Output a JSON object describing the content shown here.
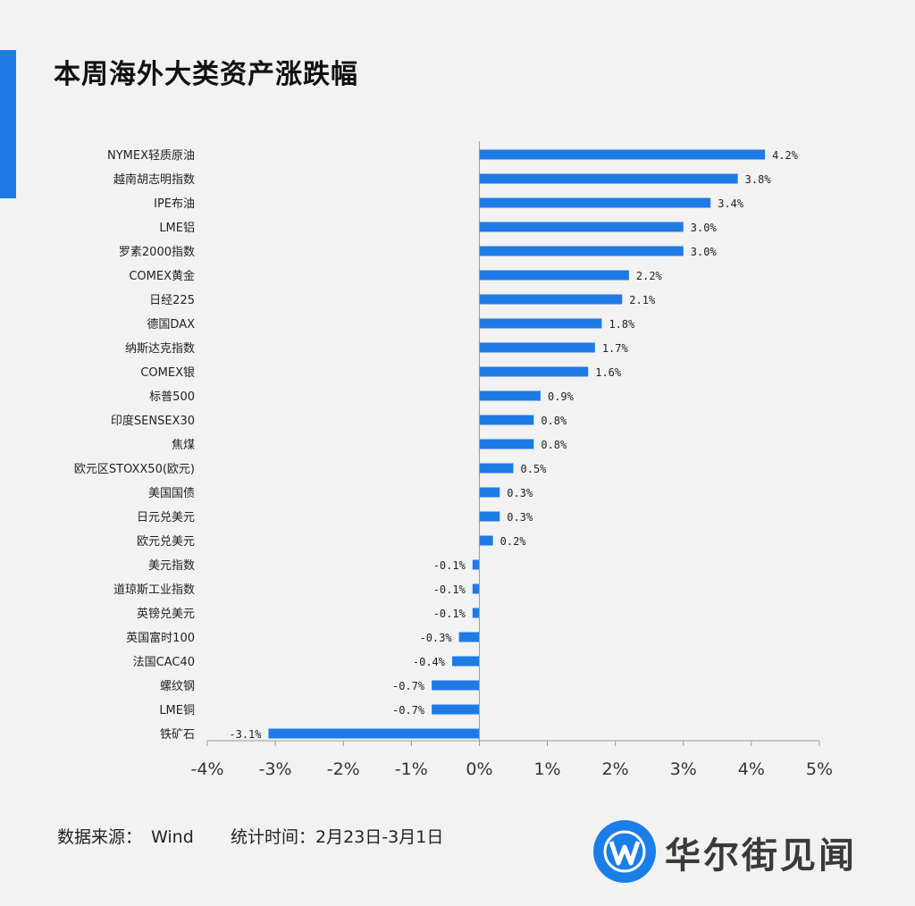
{
  "title": "本周海外大类资产涨跌幅",
  "footer": {
    "source_label": "数据来源：",
    "source_value": "Wind",
    "period_label": "统计时间：",
    "period_value": "2月23日-3月1日"
  },
  "brand": {
    "name": "华尔街见闻"
  },
  "colors": {
    "bar": "#1e7be6",
    "accent": "#1e7be6",
    "background": "#f2f2f2"
  },
  "chart_data": {
    "type": "bar",
    "orientation": "horizontal",
    "title": "",
    "xlabel": "",
    "ylabel": "",
    "xlim": [
      -4,
      5
    ],
    "ticks": [
      "-4%",
      "-3%",
      "-2%",
      "-1%",
      "0%",
      "1%",
      "2%",
      "3%",
      "4%",
      "5%"
    ],
    "grid": false,
    "categories": [
      "NYMEX轻质原油",
      "越南胡志明指数",
      "IPE布油",
      "LME铝",
      "罗素2000指数",
      "COMEX黄金",
      "日经225",
      "德国DAX",
      "纳斯达克指数",
      "COMEX银",
      "标普500",
      "印度SENSEX30",
      "焦煤",
      "欧元区STOXX50(欧元)",
      "美国国债",
      "日元兑美元",
      "欧元兑美元",
      "美元指数",
      "道琼斯工业指数",
      "英镑兑美元",
      "英国富时100",
      "法国CAC40",
      "螺纹钢",
      "LME铜",
      "铁矿石"
    ],
    "values": [
      4.2,
      3.8,
      3.4,
      3.0,
      3.0,
      2.2,
      2.1,
      1.8,
      1.7,
      1.6,
      0.9,
      0.8,
      0.8,
      0.5,
      0.3,
      0.3,
      0.2,
      -0.1,
      -0.1,
      -0.1,
      -0.3,
      -0.4,
      -0.7,
      -0.7,
      -3.1
    ],
    "labels": [
      "4.2%",
      "3.8%",
      "3.4%",
      "3.0%",
      "3.0%",
      "2.2%",
      "2.1%",
      "1.8%",
      "1.7%",
      "1.6%",
      "0.9%",
      "0.8%",
      "0.8%",
      "0.5%",
      "0.3%",
      "0.3%",
      "0.2%",
      "-0.1%",
      "-0.1%",
      "-0.1%",
      "-0.3%",
      "-0.4%",
      "-0.7%",
      "-0.7%",
      "-3.1%"
    ]
  }
}
